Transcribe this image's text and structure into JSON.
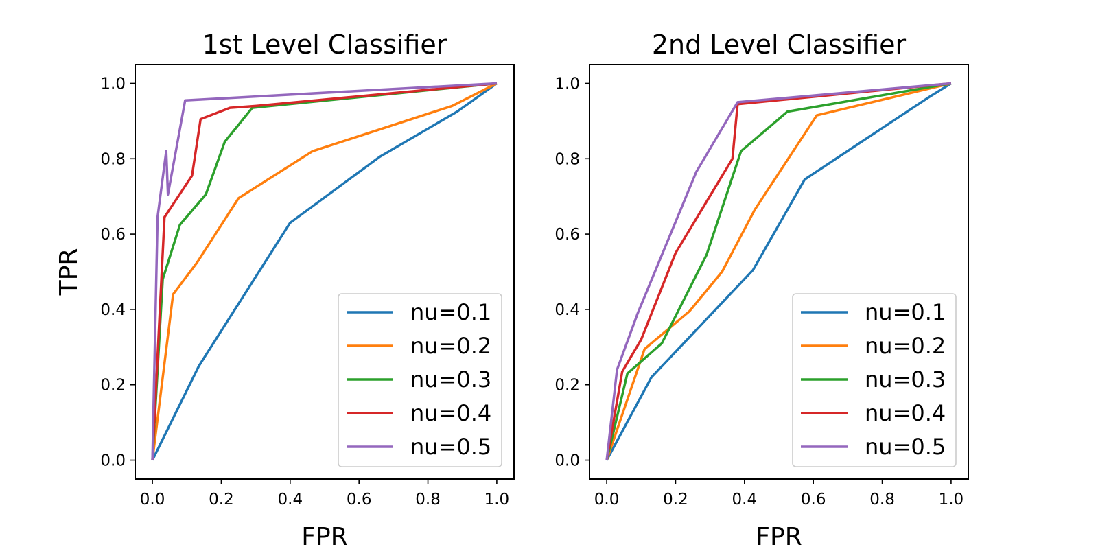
{
  "chart_data": [
    {
      "type": "line",
      "title": "1st Level Classifier",
      "xlabel": "FPR",
      "ylabel": "TPR",
      "xlim": [
        -0.05,
        1.05
      ],
      "ylim": [
        -0.05,
        1.05
      ],
      "xticks": [
        "0.0",
        "0.2",
        "0.4",
        "0.6",
        "0.8",
        "1.0"
      ],
      "yticks": [
        "0.0",
        "0.2",
        "0.4",
        "0.6",
        "0.8",
        "1.0"
      ],
      "grid": false,
      "legend_position": "lower-right",
      "series": [
        {
          "name": "nu=0.1",
          "color": "#1f77b4",
          "x": [
            0.0,
            0.135,
            0.4,
            0.66,
            0.885,
            1.0
          ],
          "y": [
            0.0,
            0.25,
            0.63,
            0.805,
            0.925,
            1.0
          ]
        },
        {
          "name": "nu=0.2",
          "color": "#ff7f0e",
          "x": [
            0.0,
            0.06,
            0.13,
            0.25,
            0.465,
            0.87,
            1.0
          ],
          "y": [
            0.0,
            0.44,
            0.525,
            0.695,
            0.82,
            0.94,
            1.0
          ]
        },
        {
          "name": "nu=0.3",
          "color": "#2ca02c",
          "x": [
            0.0,
            0.03,
            0.08,
            0.155,
            0.21,
            0.29,
            1.0
          ],
          "y": [
            0.0,
            0.48,
            0.625,
            0.705,
            0.845,
            0.935,
            1.0
          ]
        },
        {
          "name": "nu=0.4",
          "color": "#d62728",
          "x": [
            0.0,
            0.035,
            0.115,
            0.14,
            0.225,
            0.3,
            1.0
          ],
          "y": [
            0.0,
            0.645,
            0.755,
            0.905,
            0.935,
            0.94,
            1.0
          ]
        },
        {
          "name": "nu=0.5",
          "color": "#9467bd",
          "x": [
            0.0,
            0.015,
            0.04,
            0.045,
            0.095,
            1.0
          ],
          "y": [
            0.0,
            0.645,
            0.82,
            0.705,
            0.955,
            1.0
          ]
        }
      ]
    },
    {
      "type": "line",
      "title": "2nd Level Classifier",
      "xlabel": "FPR",
      "ylabel": "",
      "xlim": [
        -0.05,
        1.05
      ],
      "ylim": [
        -0.05,
        1.05
      ],
      "xticks": [
        "0.0",
        "0.2",
        "0.4",
        "0.6",
        "0.8",
        "1.0"
      ],
      "yticks": [
        "0.0",
        "0.2",
        "0.4",
        "0.6",
        "0.8",
        "1.0"
      ],
      "grid": false,
      "legend_position": "lower-right",
      "series": [
        {
          "name": "nu=0.1",
          "color": "#1f77b4",
          "x": [
            0.0,
            0.13,
            0.27,
            0.425,
            0.575,
            0.93,
            1.0
          ],
          "y": [
            0.0,
            0.22,
            0.355,
            0.505,
            0.745,
            0.96,
            1.0
          ]
        },
        {
          "name": "nu=0.2",
          "color": "#ff7f0e",
          "x": [
            0.0,
            0.11,
            0.24,
            0.335,
            0.43,
            0.61,
            1.0
          ],
          "y": [
            0.0,
            0.295,
            0.395,
            0.5,
            0.665,
            0.915,
            1.0
          ]
        },
        {
          "name": "nu=0.3",
          "color": "#2ca02c",
          "x": [
            0.0,
            0.06,
            0.16,
            0.29,
            0.39,
            0.525,
            1.0
          ],
          "y": [
            0.0,
            0.23,
            0.31,
            0.545,
            0.82,
            0.925,
            1.0
          ]
        },
        {
          "name": "nu=0.4",
          "color": "#d62728",
          "x": [
            0.0,
            0.045,
            0.1,
            0.2,
            0.365,
            0.38,
            1.0
          ],
          "y": [
            0.0,
            0.235,
            0.32,
            0.55,
            0.8,
            0.945,
            1.0
          ]
        },
        {
          "name": "nu=0.5",
          "color": "#9467bd",
          "x": [
            0.0,
            0.03,
            0.09,
            0.26,
            0.38,
            1.0
          ],
          "y": [
            0.0,
            0.24,
            0.39,
            0.765,
            0.95,
            1.0
          ]
        }
      ]
    }
  ]
}
